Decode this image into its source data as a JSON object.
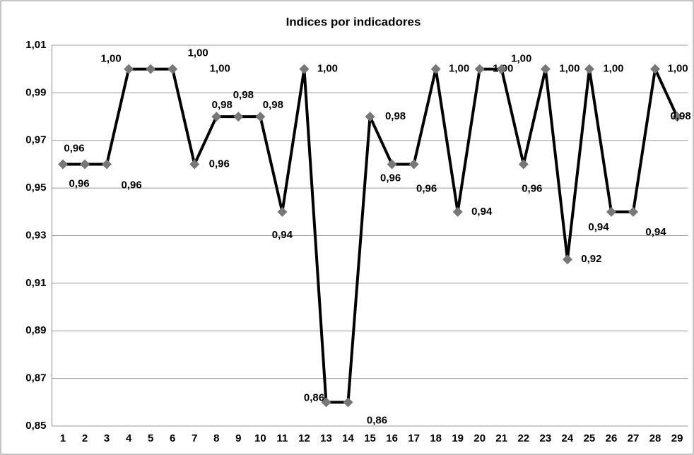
{
  "chart_data": {
    "type": "line",
    "title": "Indices por indicadores",
    "categories": [
      "1",
      "2",
      "3",
      "4",
      "5",
      "6",
      "7",
      "8",
      "9",
      "10",
      "11",
      "12",
      "13",
      "14",
      "15",
      "16",
      "17",
      "18",
      "19",
      "20",
      "21",
      "22",
      "23",
      "24",
      "25",
      "26",
      "27",
      "28",
      "29"
    ],
    "series": [
      {
        "color": "#000000",
        "values": [
          0.96,
          0.96,
          0.96,
          1.0,
          1.0,
          1.0,
          0.96,
          0.98,
          0.98,
          0.98,
          0.94,
          1.0,
          0.86,
          0.86,
          0.98,
          0.96,
          0.96,
          1.0,
          0.94,
          1.0,
          1.0,
          0.96,
          1.0,
          0.92,
          1.0,
          0.94,
          0.94,
          1.0,
          0.98
        ],
        "value_labels": [
          "0,96",
          "0,96",
          "0,96",
          "1,00",
          "1,00",
          "1,00",
          "0,96",
          "0,98",
          "0,98",
          "0,98",
          "0,94",
          "1,00",
          "0,86",
          "0,86",
          "0,98",
          "0,96",
          "0,96",
          "1,00",
          "0,94",
          "1,00",
          "1,00",
          "0,96",
          "1,00",
          "0,92",
          "1,00",
          "0,94",
          "0,94",
          "1,00",
          "0,98"
        ]
      }
    ],
    "marker_color": "#777777",
    "ylim": [
      0.85,
      1.01
    ],
    "yticks": [
      {
        "value": 0.85,
        "label": "0,85"
      },
      {
        "value": 0.87,
        "label": "0,87"
      },
      {
        "value": 0.89,
        "label": "0,89"
      },
      {
        "value": 0.91,
        "label": "0,91"
      },
      {
        "value": 0.93,
        "label": "0,93"
      },
      {
        "value": 0.95,
        "label": "0,95"
      },
      {
        "value": 0.97,
        "label": "0,97"
      },
      {
        "value": 0.99,
        "label": "0,99"
      },
      {
        "value": 1.01,
        "label": "1,01"
      }
    ],
    "grid": true
  }
}
